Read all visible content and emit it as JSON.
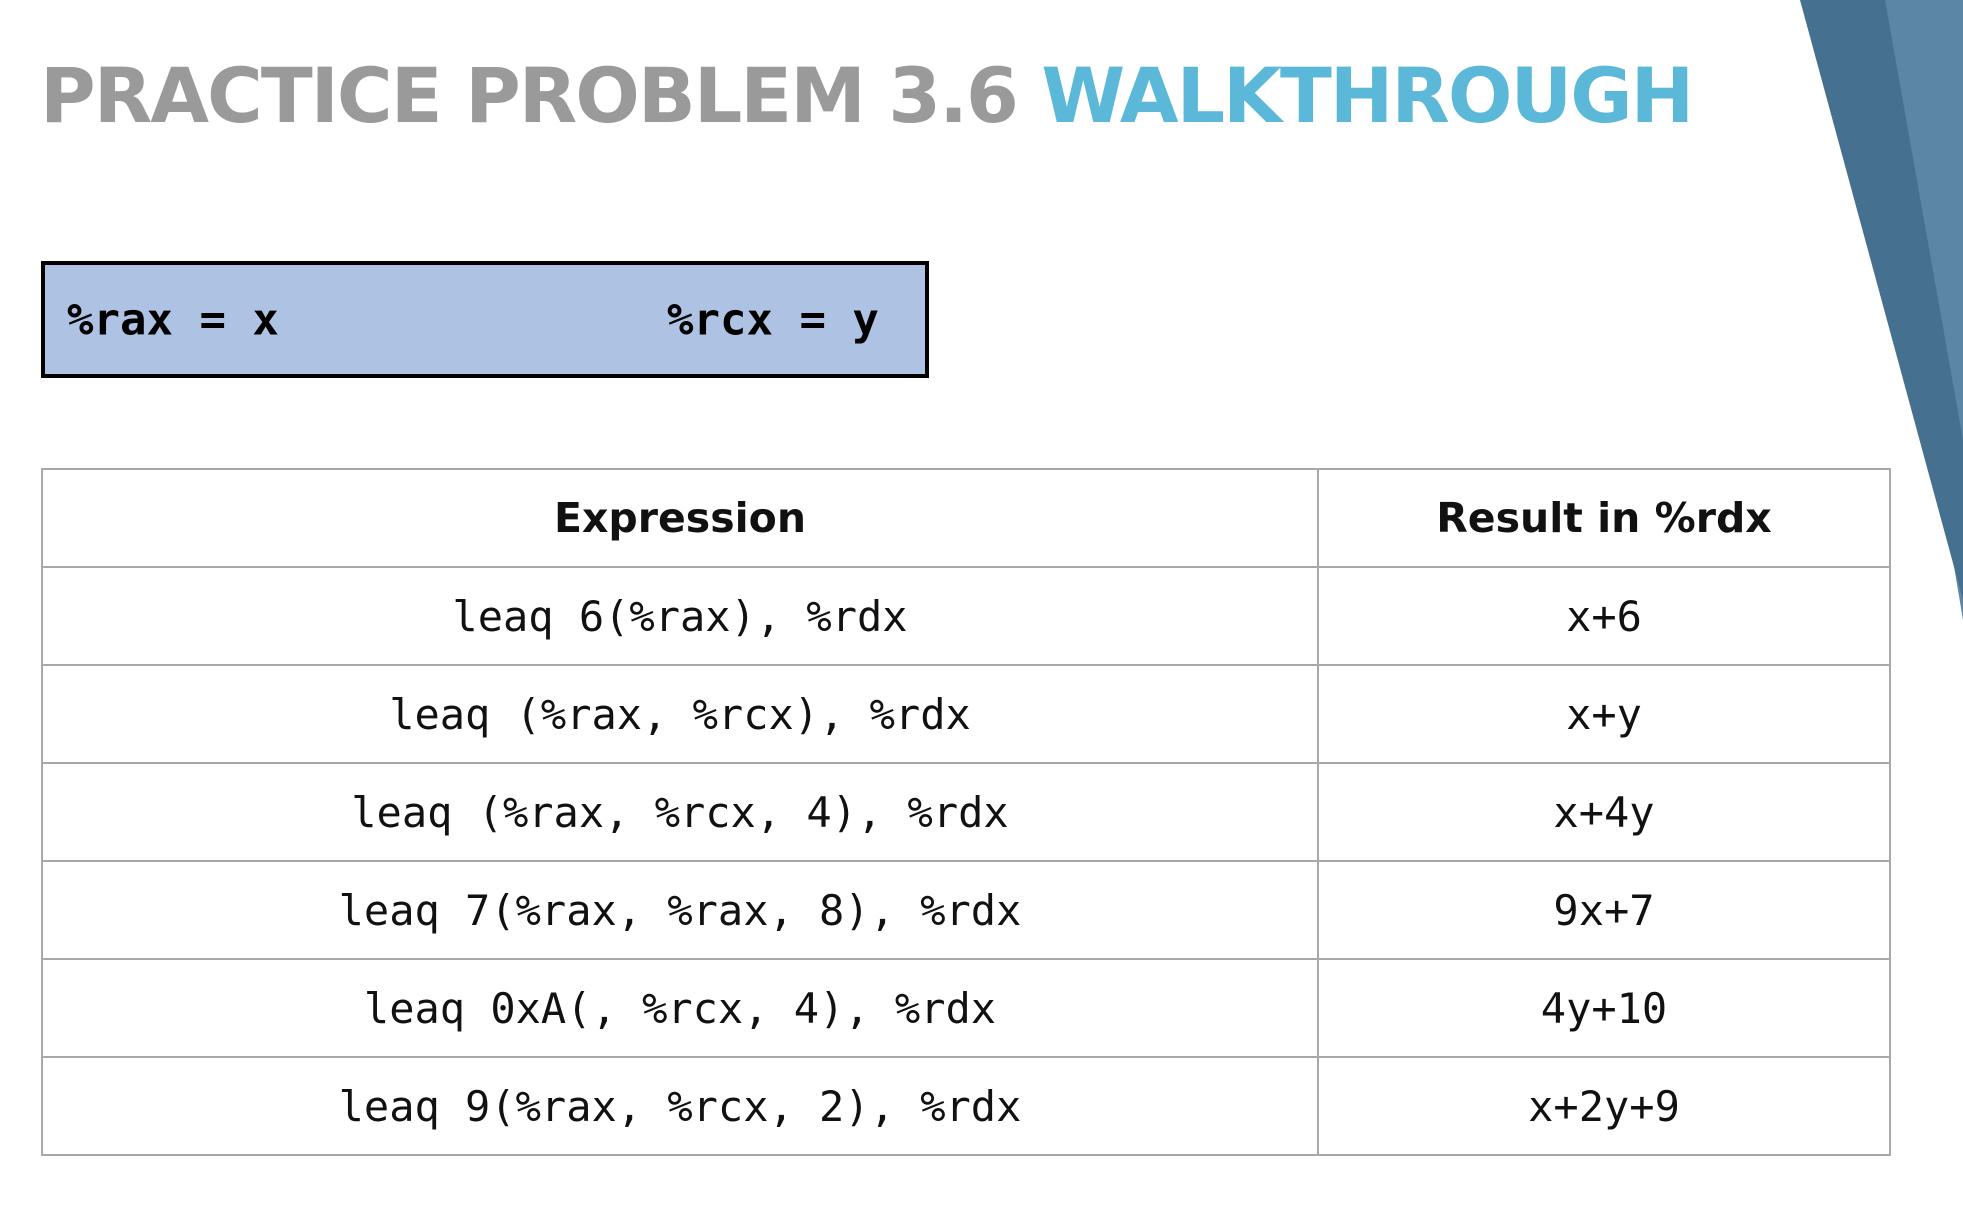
{
  "title": {
    "main": "PRACTICE PROBLEM 3.6",
    "accent": "WALKTHROUGH"
  },
  "registers": {
    "left": "%rax = x",
    "right": "%rcx = y"
  },
  "table": {
    "headers": [
      "Expression",
      "Result in %rdx"
    ],
    "rows": [
      {
        "expression": "leaq 6(%rax), %rdx",
        "result": "x+6"
      },
      {
        "expression": "leaq (%rax, %rcx), %rdx",
        "result": "x+y"
      },
      {
        "expression": "leaq (%rax, %rcx, 4), %rdx",
        "result": "x+4y"
      },
      {
        "expression": "leaq 7(%rax, %rax, 8), %rdx",
        "result": "9x+7"
      },
      {
        "expression": "leaq 0xA(, %rcx, 4), %rdx",
        "result": "4y+10"
      },
      {
        "expression": "leaq 9(%rax, %rcx, 2), %rdx",
        "result": "x+2y+9"
      }
    ]
  },
  "colors": {
    "title_gray": "#9a9a9a",
    "title_accent": "#5bb8d8",
    "register_box": "#aec3e4",
    "corner_dark": "#46708f",
    "corner_light": "#5b86a6",
    "table_border": "#a8a8a8"
  }
}
